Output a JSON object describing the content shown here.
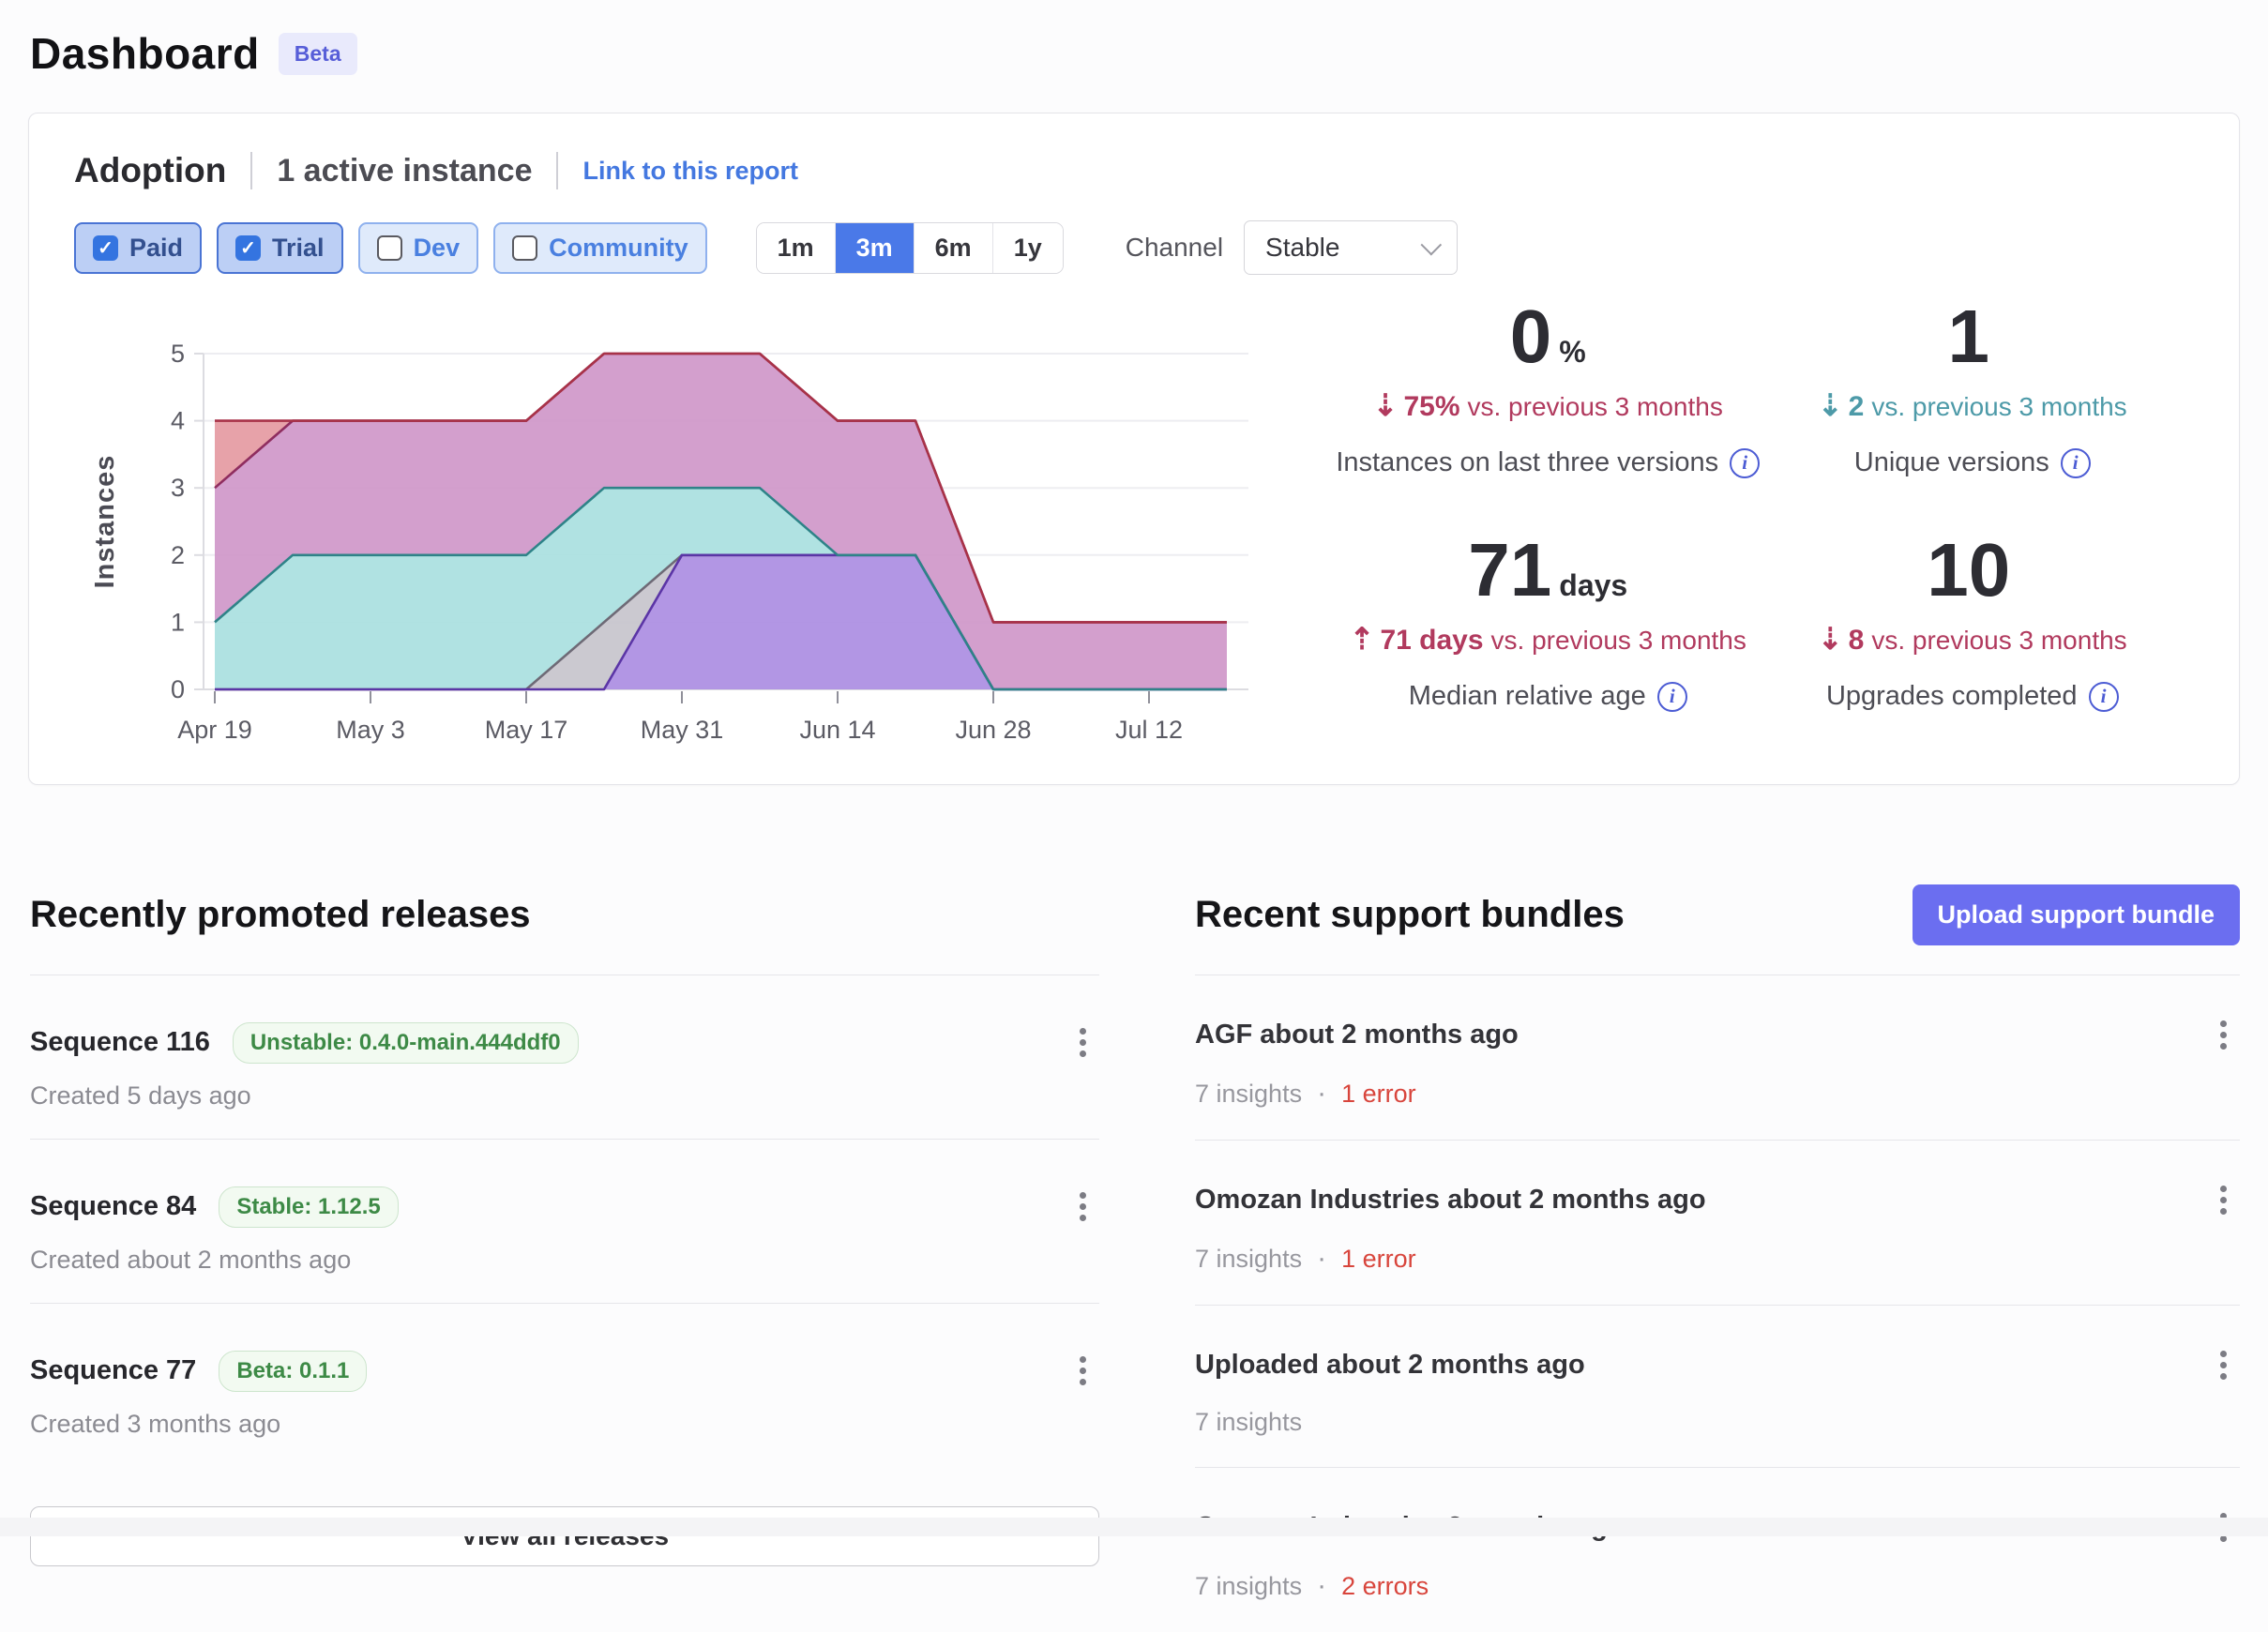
{
  "page": {
    "title": "Dashboard",
    "badge": "Beta"
  },
  "adoption": {
    "title": "Adoption",
    "active_instances": "1 active instance",
    "link": "Link to this report",
    "filters": [
      {
        "label": "Paid",
        "checked": true
      },
      {
        "label": "Trial",
        "checked": true
      },
      {
        "label": "Dev",
        "checked": false
      },
      {
        "label": "Community",
        "checked": false
      }
    ],
    "check_glyph": "✓",
    "ranges": [
      {
        "label": "1m",
        "active": false
      },
      {
        "label": "3m",
        "active": true
      },
      {
        "label": "6m",
        "active": false
      },
      {
        "label": "1y",
        "active": false
      }
    ],
    "channel_label": "Channel",
    "channel_value": "Stable",
    "stats": [
      {
        "value": "0",
        "unit": "%",
        "delta_arrow": "⇣",
        "delta_value": "75%",
        "delta_suffix": "vs. previous 3 months",
        "delta_color": "#b13a5e",
        "label": "Instances on last three versions"
      },
      {
        "value": "1",
        "unit": "",
        "delta_arrow": "⇣",
        "delta_value": "2",
        "delta_suffix": "vs. previous 3 months",
        "delta_color": "#4d9aa8",
        "label": "Unique versions"
      },
      {
        "value": "71",
        "unit": "days",
        "delta_arrow": "⇡",
        "delta_value": "71 days",
        "delta_suffix": "vs. previous 3 months",
        "delta_color": "#b13a5e",
        "label": "Median relative age"
      },
      {
        "value": "10",
        "unit": "",
        "delta_arrow": "⇣",
        "delta_value": "8",
        "delta_suffix": "vs. previous 3 months",
        "delta_color": "#b13a5e",
        "label": "Upgrades completed"
      }
    ],
    "info_glyph": "i"
  },
  "chart_data": {
    "type": "area",
    "stacked": true,
    "title": "",
    "ylabel": "Instances",
    "ylim": [
      0,
      5
    ],
    "y_ticks": [
      0,
      1,
      2,
      3,
      4,
      5
    ],
    "x": [
      "Apr 19",
      "Apr 26",
      "May 3",
      "May 10",
      "May 17",
      "May 24",
      "May 31",
      "Jun 7",
      "Jun 14",
      "Jun 21",
      "Jun 28",
      "Jul 5",
      "Jul 12",
      "Jul 19"
    ],
    "tick_labels": [
      "Apr 19",
      "May 3",
      "May 17",
      "May 31",
      "Jun 14",
      "Jun 28",
      "Jul 12"
    ],
    "tick_indices": [
      0,
      2,
      4,
      6,
      8,
      10,
      12
    ],
    "grid": true,
    "legend": "none",
    "series": [
      {
        "name": "violet",
        "cumulative_top": [
          0,
          0,
          0,
          0,
          0,
          0,
          2,
          2,
          2,
          2,
          0,
          0,
          0,
          0
        ],
        "fill": "#ab8de2",
        "stroke": "#5b35a6"
      },
      {
        "name": "gray",
        "cumulative_top": [
          0,
          0,
          0,
          0,
          0,
          1,
          2,
          2,
          2,
          2,
          0,
          0,
          0,
          0
        ],
        "fill": "#c7c4cc",
        "stroke": "#6e6a76"
      },
      {
        "name": "teal",
        "cumulative_top": [
          1,
          2,
          2,
          2,
          2,
          3,
          3,
          3,
          2,
          2,
          0,
          0,
          0,
          0
        ],
        "fill": "#a9dfdf",
        "stroke": "#2e8388"
      },
      {
        "name": "magenta",
        "cumulative_top": [
          3,
          4,
          4,
          4,
          4,
          5,
          5,
          5,
          4,
          4,
          1,
          1,
          1,
          1
        ],
        "fill": "#cf97c9",
        "stroke": "#8f2d5f"
      },
      {
        "name": "salmon",
        "cumulative_top": [
          4,
          4,
          4,
          4,
          4,
          5,
          5,
          5,
          4,
          4,
          1,
          1,
          1,
          1
        ],
        "fill": "#e59aa2",
        "stroke": "#a83248"
      }
    ],
    "stroke_order": [
      "magenta",
      "salmon",
      "gray",
      "violet",
      "teal"
    ]
  },
  "releases": {
    "heading": "Recently promoted releases",
    "items": [
      {
        "name": "Sequence 116",
        "badge": "Unstable: 0.4.0-main.444ddf0",
        "created": "Created 5 days ago"
      },
      {
        "name": "Sequence 84",
        "badge": "Stable: 1.12.5",
        "created": "Created about 2 months ago"
      },
      {
        "name": "Sequence 77",
        "badge": "Beta: 0.1.1",
        "created": "Created 3 months ago"
      }
    ],
    "view_all": "View all releases"
  },
  "bundles": {
    "heading": "Recent support bundles",
    "upload_button": "Upload support bundle",
    "meta_separator": "·",
    "items": [
      {
        "name": "AGF about 2 months ago",
        "insights": "7 insights",
        "errors": "1 error"
      },
      {
        "name": "Omozan Industries about 2 months ago",
        "insights": "7 insights",
        "errors": "1 error"
      },
      {
        "name": "Uploaded about 2 months ago",
        "insights": "7 insights",
        "errors": ""
      },
      {
        "name": "Omozan Industries 3 months ago",
        "insights": "7 insights",
        "errors": "2 errors"
      }
    ]
  }
}
